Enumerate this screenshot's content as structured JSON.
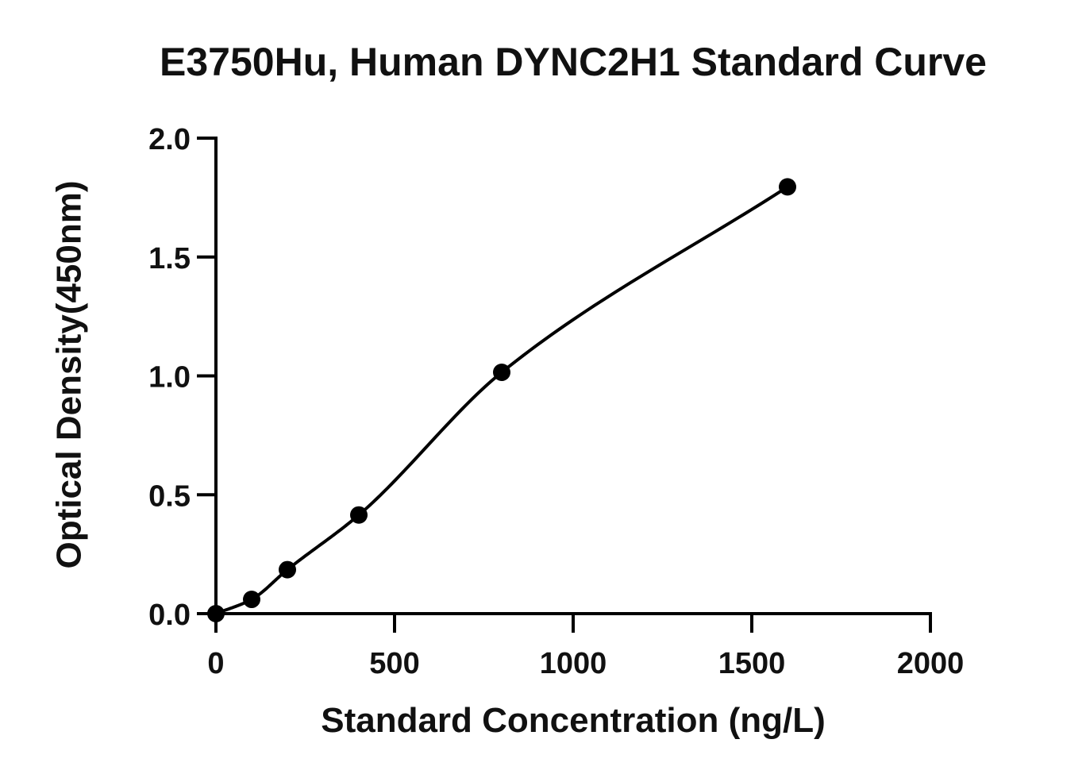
{
  "chart_data": {
    "type": "scatter",
    "title": "E3750Hu, Human DYNC2H1 Standard Curve",
    "xlabel": "Standard Concentration (ng/L)",
    "ylabel": "Optical Density(450nm)",
    "xlim": [
      0,
      2000
    ],
    "ylim": [
      0,
      2.0
    ],
    "x_ticks": [
      0,
      500,
      1000,
      1500,
      2000
    ],
    "x_tick_labels": [
      "0",
      "500",
      "1000",
      "1500",
      "2000"
    ],
    "y_ticks": [
      0.0,
      0.5,
      1.0,
      1.5,
      2.0
    ],
    "y_tick_labels": [
      "0.0",
      "0.5",
      "1.0",
      "1.5",
      "2.0"
    ],
    "grid": false,
    "series": [
      {
        "x": [
          0,
          100,
          200,
          400,
          800,
          1600
        ],
        "y": [
          0.0,
          0.06,
          0.185,
          0.415,
          1.015,
          1.795
        ],
        "fit_curve": true,
        "color": "#000000"
      }
    ]
  }
}
